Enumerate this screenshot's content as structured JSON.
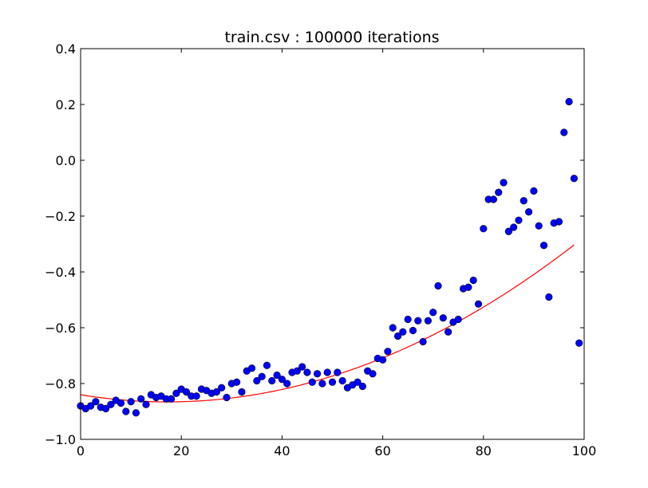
{
  "chart_data": {
    "type": "scatter",
    "title": "train.csv : 100000 iterations",
    "xlabel": "",
    "ylabel": "",
    "xlim": [
      0,
      100
    ],
    "ylim": [
      -1.0,
      0.4
    ],
    "x_ticks": [
      0,
      20,
      40,
      60,
      80,
      100
    ],
    "x_tick_labels": [
      "0",
      "20",
      "40",
      "60",
      "80",
      "100"
    ],
    "y_ticks": [
      -1.0,
      -0.8,
      -0.6,
      -0.4,
      -0.2,
      0.0,
      0.2,
      0.4
    ],
    "y_tick_labels": [
      "−1.0",
      "−0.8",
      "−0.6",
      "−0.4",
      "−0.2",
      "0.0",
      "0.2",
      "0.4"
    ],
    "grid": false,
    "series": [
      {
        "type": "scatter",
        "color": "#0000ff",
        "edge_color": "#000000",
        "x": [
          0,
          1,
          2,
          3,
          4,
          5,
          6,
          7,
          8,
          9,
          10,
          11,
          12,
          13,
          14,
          15,
          16,
          17,
          18,
          19,
          20,
          21,
          22,
          23,
          24,
          25,
          26,
          27,
          28,
          29,
          30,
          31,
          32,
          33,
          34,
          35,
          36,
          37,
          38,
          39,
          40,
          41,
          42,
          43,
          44,
          45,
          46,
          47,
          48,
          49,
          50,
          51,
          52,
          53,
          54,
          55,
          56,
          57,
          58,
          59,
          60,
          61,
          62,
          63,
          64,
          65,
          66,
          67,
          68,
          69,
          70,
          71,
          72,
          73,
          74,
          75,
          76,
          77,
          78,
          79,
          80,
          81,
          82,
          83,
          84,
          85,
          86,
          87,
          88,
          89,
          90,
          91,
          92,
          93,
          94,
          95,
          96,
          97,
          98,
          99
        ],
        "y": [
          -0.88,
          -0.89,
          -0.88,
          -0.865,
          -0.885,
          -0.89,
          -0.875,
          -0.86,
          -0.87,
          -0.9,
          -0.865,
          -0.905,
          -0.855,
          -0.875,
          -0.84,
          -0.85,
          -0.845,
          -0.855,
          -0.855,
          -0.835,
          -0.82,
          -0.83,
          -0.845,
          -0.845,
          -0.82,
          -0.825,
          -0.835,
          -0.83,
          -0.815,
          -0.85,
          -0.8,
          -0.795,
          -0.83,
          -0.755,
          -0.745,
          -0.79,
          -0.775,
          -0.735,
          -0.79,
          -0.77,
          -0.785,
          -0.8,
          -0.76,
          -0.755,
          -0.74,
          -0.76,
          -0.795,
          -0.765,
          -0.8,
          -0.76,
          -0.795,
          -0.76,
          -0.79,
          -0.815,
          -0.805,
          -0.795,
          -0.81,
          -0.755,
          -0.765,
          -0.71,
          -0.715,
          -0.685,
          -0.6,
          -0.63,
          -0.615,
          -0.57,
          -0.61,
          -0.575,
          -0.65,
          -0.575,
          -0.545,
          -0.45,
          -0.565,
          -0.615,
          -0.58,
          -0.57,
          -0.46,
          -0.455,
          -0.43,
          -0.515,
          -0.245,
          -0.14,
          -0.14,
          -0.115,
          -0.08,
          -0.255,
          -0.24,
          -0.215,
          -0.145,
          -0.185,
          -0.11,
          -0.235,
          -0.305,
          -0.49,
          -0.225,
          -0.22,
          0.1,
          0.21,
          -0.065,
          -0.655
        ]
      },
      {
        "type": "line",
        "color": "#ff0000",
        "fit": {
          "kind": "polynomial",
          "degree": 2,
          "coefficients": [
            -0.84,
            -0.00298,
            8.63e-05
          ],
          "x_range": [
            0,
            98
          ]
        }
      }
    ]
  }
}
